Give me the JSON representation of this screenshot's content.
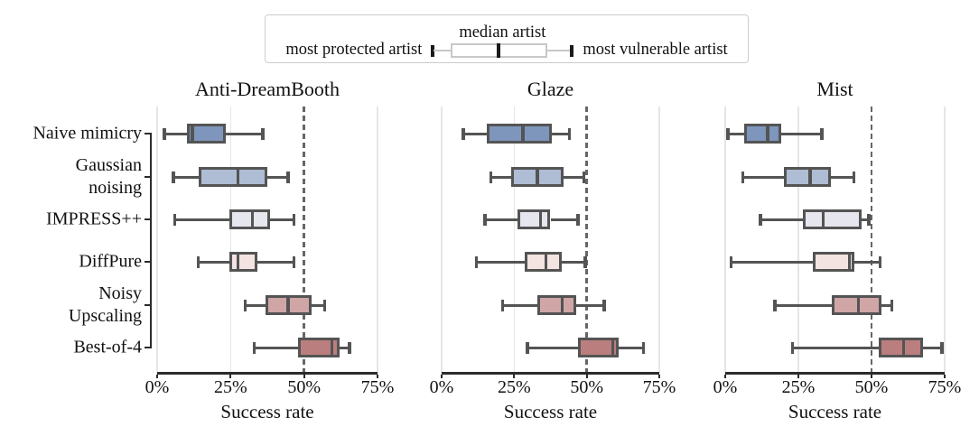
{
  "legend": {
    "most_protected": "most protected artist",
    "median": "median artist",
    "most_vulnerable": "most vulnerable artist"
  },
  "chart_data": {
    "type": "boxplot",
    "orientation": "horizontal",
    "xlabel": "Success rate",
    "xlim": [
      0,
      75
    ],
    "x_tick_values": [
      0,
      25,
      50,
      75
    ],
    "x_tick_labels": [
      "0%",
      "25%",
      "50%",
      "75%"
    ],
    "reference_line_x": 50,
    "grid": "vertical-light",
    "categories": [
      "Naive mimicry",
      "Gaussian\nnoising",
      "IMPRESS++",
      "DiffPure",
      "Noisy\nUpscaling",
      "Best-of-4"
    ],
    "category_colors": [
      "#7e96bc",
      "#aebcd4",
      "#e5e6ee",
      "#f3e3e1",
      "#d0a5a6",
      "#bb7e7e"
    ],
    "legend_note": "box spans most protected artist to most vulnerable artist with median artist marked",
    "panels": [
      {
        "title": "Anti-DreamBooth",
        "boxes": [
          {
            "category": "Naive mimicry",
            "whislo": 2.5,
            "q1": 10,
            "med": 12,
            "q3": 23.5,
            "whishi": 36
          },
          {
            "category": "Gaussian noising",
            "whislo": 5.5,
            "q1": 14,
            "med": 27.5,
            "q3": 37.5,
            "whishi": 44.5
          },
          {
            "category": "IMPRESS++",
            "whislo": 6,
            "q1": 24.5,
            "med": 32.5,
            "q3": 38.5,
            "whishi": 46.5
          },
          {
            "category": "DiffPure",
            "whislo": 14,
            "q1": 24.5,
            "med": 27.5,
            "q3": 34,
            "whishi": 46.5
          },
          {
            "category": "Noisy Upscaling",
            "whislo": 30,
            "q1": 37,
            "med": 44.5,
            "q3": 52.5,
            "whishi": 57
          },
          {
            "category": "Best-of-4",
            "whislo": 33,
            "q1": 48,
            "med": 59.5,
            "q3": 62,
            "whishi": 65.5
          }
        ]
      },
      {
        "title": "Glaze",
        "boxes": [
          {
            "category": "Naive mimicry",
            "whislo": 7.5,
            "q1": 15.5,
            "med": 28,
            "q3": 38,
            "whishi": 44
          },
          {
            "category": "Gaussian noising",
            "whislo": 17,
            "q1": 24,
            "med": 33,
            "q3": 42,
            "whishi": 49
          },
          {
            "category": "IMPRESS++",
            "whislo": 15,
            "q1": 26,
            "med": 34,
            "q3": 37.5,
            "whishi": 47
          },
          {
            "category": "DiffPure",
            "whislo": 12,
            "q1": 28.5,
            "med": 36,
            "q3": 41.5,
            "whishi": 49.5
          },
          {
            "category": "Noisy Upscaling",
            "whislo": 21,
            "q1": 33,
            "med": 41.5,
            "q3": 46.5,
            "whishi": 56
          },
          {
            "category": "Best-of-4",
            "whislo": 29.5,
            "q1": 47,
            "med": 59,
            "q3": 61,
            "whishi": 69.5
          }
        ]
      },
      {
        "title": "Mist",
        "boxes": [
          {
            "category": "Naive mimicry",
            "whislo": 1,
            "q1": 6.5,
            "med": 14.5,
            "q3": 19,
            "whishi": 33
          },
          {
            "category": "Gaussian noising",
            "whislo": 6,
            "q1": 20,
            "med": 29,
            "q3": 36,
            "whishi": 44
          },
          {
            "category": "IMPRESS++",
            "whislo": 12,
            "q1": 26.5,
            "med": 33.5,
            "q3": 46.5,
            "whishi": 49
          },
          {
            "category": "DiffPure",
            "whislo": 2,
            "q1": 30,
            "med": 42.5,
            "q3": 44,
            "whishi": 53
          },
          {
            "category": "Noisy Upscaling",
            "whislo": 17,
            "q1": 36.5,
            "med": 45.5,
            "q3": 53.5,
            "whishi": 57
          },
          {
            "category": "Best-of-4",
            "whislo": 23,
            "q1": 52.5,
            "med": 61,
            "q3": 67.5,
            "whishi": 74
          }
        ]
      }
    ],
    "colors": {
      "box_edge": "#545454",
      "gridline": "#e6e6e6",
      "reference_line": "#666666",
      "axis_spine": "#2b2b2b",
      "legend_glyph_line": "#c8c8c8",
      "legend_glyph_mark": "#1a1a1a"
    }
  }
}
